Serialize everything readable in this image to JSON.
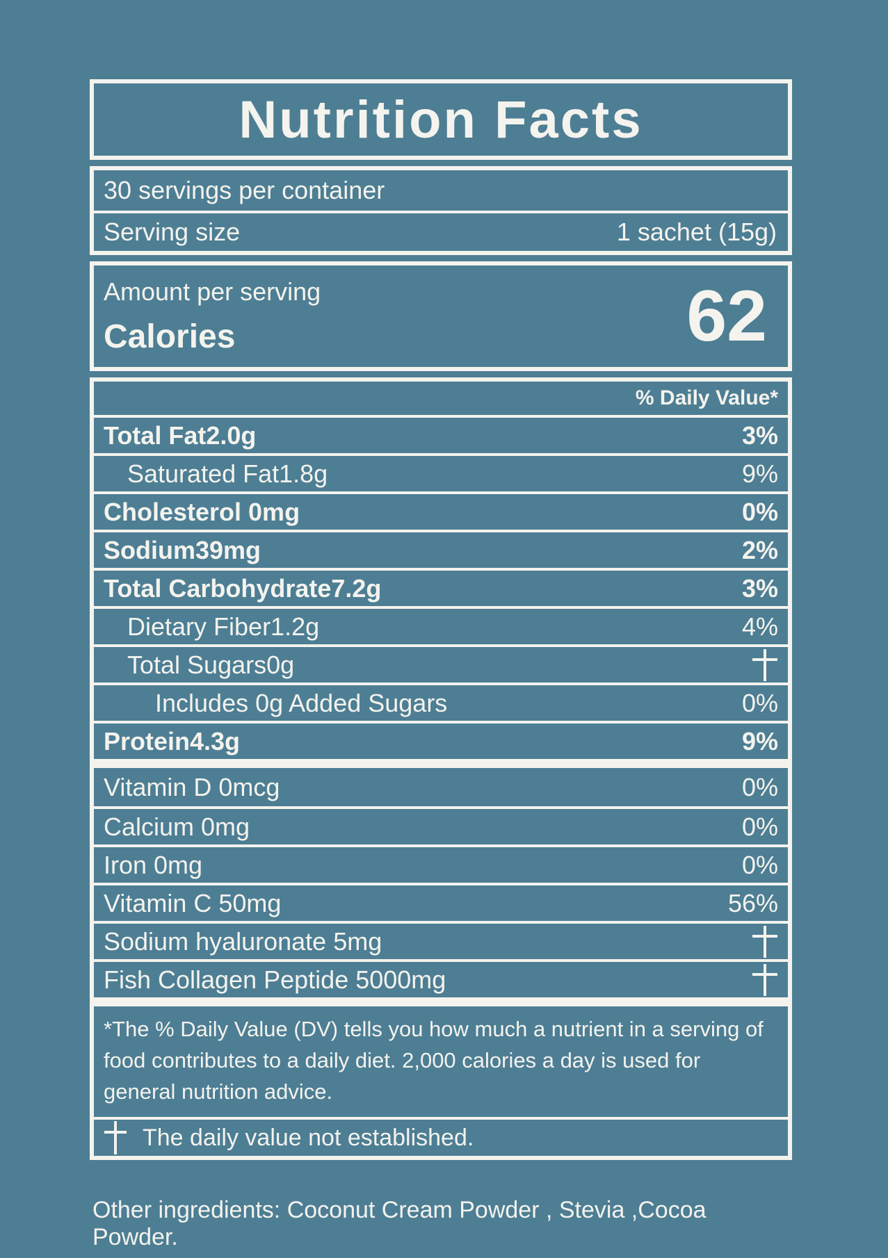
{
  "colors": {
    "background": "#4D7E94",
    "foreground": "#F4F3EE"
  },
  "icons": {
    "not_established_symbol": "dagger-cross-icon"
  },
  "label": {
    "title": "Nutrition Facts",
    "servings_per_container": "30 servings per container",
    "serving_size_label": "Serving size",
    "serving_size_value": "1 sachet (15g)",
    "amount_per_serving": "Amount per serving",
    "calories_label": "Calories",
    "calories_value": "62",
    "daily_value_header": "% Daily Value*",
    "rows": [
      {
        "name": "Total Fat2.0g",
        "dv": "3%",
        "bold": true,
        "indent": 0,
        "thick_after": false
      },
      {
        "name": "Saturated Fat1.8g",
        "dv": "9%",
        "bold": false,
        "indent": 1,
        "thick_after": false
      },
      {
        "name": "Cholesterol 0mg",
        "dv": "0%",
        "bold": true,
        "indent": 0,
        "thick_after": false
      },
      {
        "name": "Sodium39mg",
        "dv": "2%",
        "bold": true,
        "indent": 0,
        "thick_after": false
      },
      {
        "name": "Total Carbohydrate7.2g",
        "dv": "3%",
        "bold": true,
        "indent": 0,
        "thick_after": false
      },
      {
        "name": "Dietary Fiber1.2g",
        "dv": "4%",
        "bold": false,
        "indent": 1,
        "thick_after": false
      },
      {
        "name": "Total Sugars0g",
        "dv": "+",
        "bold": false,
        "indent": 1,
        "thick_after": false
      },
      {
        "name": "Includes 0g Added Sugars",
        "dv": "0%",
        "bold": false,
        "indent": 2,
        "thick_after": false
      },
      {
        "name": "Protein4.3g",
        "dv": "9%",
        "bold": true,
        "indent": 0,
        "thick_after": true
      },
      {
        "name": "Vitamin D 0mcg",
        "dv": "0%",
        "bold": false,
        "indent": 0,
        "thick_after": false
      },
      {
        "name": "Calcium 0mg",
        "dv": "0%",
        "bold": false,
        "indent": 0,
        "thick_after": false
      },
      {
        "name": "Iron 0mg",
        "dv": "0%",
        "bold": false,
        "indent": 0,
        "thick_after": false
      },
      {
        "name": "Vitamin C 50mg",
        "dv": "56%",
        "bold": false,
        "indent": 0,
        "thick_after": false
      },
      {
        "name": "Sodium hyaluronate 5mg",
        "dv": "+",
        "bold": false,
        "indent": 0,
        "thick_after": false
      },
      {
        "name": "Fish Collagen Peptide 5000mg",
        "dv": "+",
        "bold": false,
        "indent": 0,
        "thick_after": true
      }
    ],
    "footnote": "*The % Daily Value (DV) tells you how much a nutrient in a serving of food contributes to a daily diet. 2,000 calories a day is used for general nutrition advice.",
    "dagger_note": "The daily value not established.",
    "other_ingredients": "Other ingredients: Coconut Cream Powder , Stevia ,Cocoa Powder."
  }
}
